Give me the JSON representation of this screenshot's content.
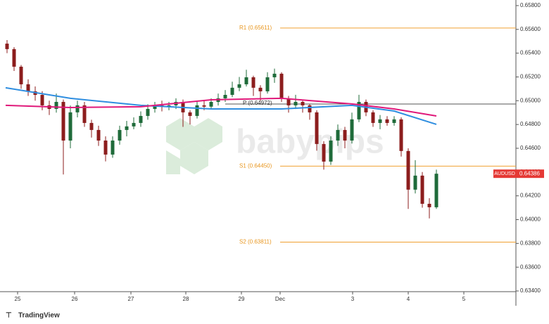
{
  "chart_data": {
    "type": "candlestick",
    "symbol": "AUDUSD",
    "last_price": 0.64386,
    "watermark": "babypips",
    "brand": "TradingView",
    "up_color": "#1f6b3a",
    "down_color": "#8c1d1d",
    "xlim": [
      0,
      73.3
    ],
    "xticks": [
      {
        "value": 2.5,
        "label": "25"
      },
      {
        "value": 10.6,
        "label": "26"
      },
      {
        "value": 18.6,
        "label": "27"
      },
      {
        "value": 26.4,
        "label": "28"
      },
      {
        "value": 34.3,
        "label": "29"
      },
      {
        "value": 39.8,
        "label": "Dec"
      },
      {
        "value": 50.1,
        "label": "3"
      },
      {
        "value": 58,
        "label": "4"
      },
      {
        "value": 65.9,
        "label": "5"
      }
    ],
    "ylim": [
      0.63394,
      0.65847
    ],
    "yticks": [
      {
        "value": 0.658,
        "label": "0.65800"
      },
      {
        "value": 0.656,
        "label": "0.65600"
      },
      {
        "value": 0.654,
        "label": "0.65400"
      },
      {
        "value": 0.652,
        "label": "0.65200"
      },
      {
        "value": 0.65,
        "label": "0.65000"
      },
      {
        "value": 0.648,
        "label": "0.64800"
      },
      {
        "value": 0.646,
        "label": "0.64600"
      },
      {
        "value": 0.644,
        "label": "0.64400"
      },
      {
        "value": 0.642,
        "label": "0.64200"
      },
      {
        "value": 0.64,
        "label": "0.64000"
      },
      {
        "value": 0.638,
        "label": "0.63800"
      },
      {
        "value": 0.636,
        "label": "0.63600"
      },
      {
        "value": 0.634,
        "label": "0.63400"
      }
    ],
    "x": [
      1,
      2,
      3,
      4,
      5,
      6,
      7,
      8,
      9,
      10,
      11,
      12,
      13,
      14,
      15,
      16,
      17,
      18,
      19,
      20,
      21,
      22,
      23,
      24,
      25,
      26,
      27,
      28,
      29,
      30,
      31,
      32,
      33,
      34,
      35,
      36,
      37,
      38,
      39,
      40,
      41,
      42,
      43,
      44,
      45,
      46,
      47,
      48,
      49,
      50,
      51,
      52,
      53,
      54,
      55,
      56,
      57,
      58,
      59,
      60,
      61,
      62
    ],
    "open": [
      0.6548,
      0.65434,
      0.65286,
      0.65138,
      0.65079,
      0.65049,
      0.64961,
      0.64931,
      0.6499,
      0.64665,
      0.64902,
      0.64961,
      0.64813,
      0.64754,
      0.64665,
      0.64547,
      0.64665,
      0.64754,
      0.64784,
      0.64813,
      0.64872,
      0.64931,
      0.64961,
      0.6495,
      0.64961,
      0.6499,
      0.64902,
      0.64872,
      0.64961,
      0.6495,
      0.6499,
      0.6502,
      0.65049,
      0.65109,
      0.65138,
      0.65197,
      0.65109,
      0.65079,
      0.65197,
      0.65227,
      0.6502,
      0.64961,
      0.6499,
      0.64961,
      0.64902,
      0.64636,
      0.64488,
      0.64665,
      0.64754,
      0.64665,
      0.64843,
      0.6499,
      0.64902,
      0.64813,
      0.64843,
      0.64813,
      0.64843,
      0.64577,
      0.64252,
      0.6437,
      0.64133,
      0.64104
    ],
    "high": [
      0.6551,
      0.6545,
      0.653,
      0.6518,
      0.6512,
      0.6508,
      0.65,
      0.6506,
      0.6501,
      0.6496,
      0.65,
      0.6499,
      0.6484,
      0.6479,
      0.647,
      0.647,
      0.6479,
      0.6483,
      0.6486,
      0.6491,
      0.6497,
      0.6499,
      0.65,
      0.6499,
      0.6502,
      0.6501,
      0.6492,
      0.6499,
      0.65,
      0.6502,
      0.6506,
      0.6509,
      0.6516,
      0.652,
      0.6526,
      0.6521,
      0.6513,
      0.6524,
      0.6527,
      0.6524,
      0.6504,
      0.6505,
      0.65,
      0.6497,
      0.6492,
      0.6466,
      0.647,
      0.648,
      0.6478,
      0.649,
      0.6505,
      0.6501,
      0.6492,
      0.6488,
      0.6487,
      0.6487,
      0.6486,
      0.646,
      0.645,
      0.644,
      0.6418,
      0.6442
    ],
    "low": [
      0.654,
      0.6525,
      0.651,
      0.6504,
      0.65,
      0.6492,
      0.6488,
      0.649,
      0.6438,
      0.646,
      0.6486,
      0.6478,
      0.6469,
      0.6462,
      0.6449,
      0.6452,
      0.6463,
      0.647,
      0.6476,
      0.6478,
      0.6484,
      0.649,
      0.6491,
      0.6492,
      0.6493,
      0.6478,
      0.648,
      0.6485,
      0.6492,
      0.6493,
      0.6496,
      0.6499,
      0.6503,
      0.6508,
      0.6512,
      0.6504,
      0.65,
      0.6506,
      0.6515,
      0.6499,
      0.649,
      0.6493,
      0.649,
      0.6484,
      0.6458,
      0.6442,
      0.6446,
      0.6462,
      0.646,
      0.6464,
      0.6482,
      0.6487,
      0.6478,
      0.6476,
      0.6479,
      0.6479,
      0.6453,
      0.6409,
      0.6422,
      0.641,
      0.6401,
      0.6409
    ],
    "close": [
      0.65434,
      0.65286,
      0.65138,
      0.65079,
      0.65049,
      0.64961,
      0.64931,
      0.6499,
      0.64665,
      0.64902,
      0.64961,
      0.64813,
      0.64754,
      0.64665,
      0.64547,
      0.64665,
      0.64754,
      0.64784,
      0.64813,
      0.64872,
      0.64931,
      0.64961,
      0.6495,
      0.64961,
      0.6499,
      0.64902,
      0.64872,
      0.64961,
      0.6495,
      0.6499,
      0.6502,
      0.65049,
      0.65109,
      0.65138,
      0.65197,
      0.65109,
      0.65079,
      0.65197,
      0.65227,
      0.6502,
      0.64961,
      0.6499,
      0.64961,
      0.64902,
      0.64636,
      0.64488,
      0.64665,
      0.64754,
      0.64665,
      0.64843,
      0.6499,
      0.64902,
      0.64813,
      0.64843,
      0.64813,
      0.64843,
      0.64577,
      0.64252,
      0.6437,
      0.64133,
      0.64104,
      0.64386
    ],
    "series": [
      {
        "color": "#2f8ee0",
        "x": [
          0.8,
          10,
          20,
          30,
          40,
          50,
          56,
          62
        ],
        "values": [
          0.65109,
          0.6502,
          0.64961,
          0.64931,
          0.64931,
          0.64961,
          0.64913,
          0.64801
        ]
      },
      {
        "color": "#e0197a",
        "x": [
          0.8,
          10,
          20,
          30,
          40,
          50,
          56,
          62
        ],
        "values": [
          0.64961,
          0.64943,
          0.64949,
          0.65008,
          0.6502,
          0.64973,
          0.64931,
          0.64872
        ]
      }
    ],
    "levels": [
      {
        "label": "R1 (0.65611)",
        "value": 0.65611,
        "color": "#f0a030"
      },
      {
        "label": "P (0.64972)",
        "value": 0.64972,
        "color": "#555555"
      },
      {
        "label": "S1 (0.64450)",
        "value": 0.6445,
        "color": "#f0a030"
      },
      {
        "label": "S2 (0.63811)",
        "value": 0.63811,
        "color": "#f0a030"
      }
    ]
  }
}
